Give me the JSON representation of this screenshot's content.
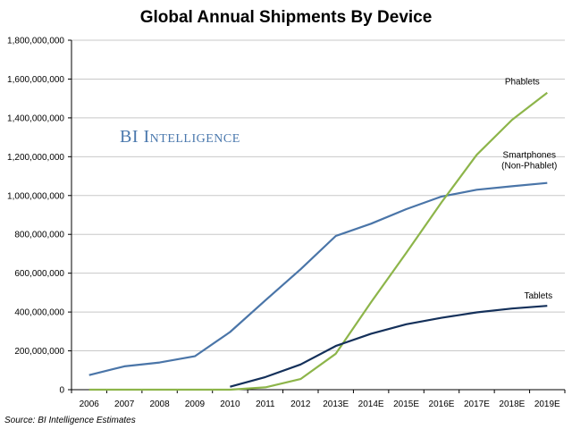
{
  "chart_data": {
    "type": "line",
    "title": "Global Annual Shipments By Device",
    "watermark": "BI Intelligence",
    "source": "Source: BI Intelligence Estimates",
    "xlabel": "",
    "ylabel": "",
    "categories": [
      "2006",
      "2007",
      "2008",
      "2009",
      "2010",
      "2011",
      "2012",
      "2013E",
      "2014E",
      "2015E",
      "2016E",
      "2017E",
      "2018E",
      "2019E"
    ],
    "ylim": [
      0,
      1800000000
    ],
    "yticks": [
      0,
      200000000,
      400000000,
      600000000,
      800000000,
      1000000000,
      1200000000,
      1400000000,
      1600000000,
      1800000000
    ],
    "ytick_labels": [
      "0",
      "200,000,000",
      "400,000,000",
      "600,000,000",
      "800,000,000",
      "1,000,000,000",
      "1,200,000,000",
      "1,400,000,000",
      "1,600,000,000",
      "1,800,000,000"
    ],
    "grid": "horizontal",
    "legend": "inline labels near line ends",
    "series": [
      {
        "name": "Smartphones (Non-Phablet)",
        "label_lines": [
          "Smartphones",
          "(Non-Phablet)"
        ],
        "color": "#4a75a8",
        "values": [
          75000000,
          120000000,
          140000000,
          172000000,
          297000000,
          460000000,
          620000000,
          792000000,
          855000000,
          930000000,
          995000000,
          1030000000,
          1048000000,
          1065000000
        ]
      },
      {
        "name": "Phablets",
        "label_lines": [
          "Phablets"
        ],
        "color": "#8db54a",
        "values": [
          0,
          0,
          0,
          0,
          0,
          12000000,
          55000000,
          185000000,
          450000000,
          705000000,
          965000000,
          1210000000,
          1390000000,
          1530000000
        ]
      },
      {
        "name": "Tablets",
        "label_lines": [
          "Tablets"
        ],
        "color": "#14305a",
        "values": [
          null,
          null,
          null,
          null,
          15000000,
          65000000,
          130000000,
          225000000,
          288000000,
          337000000,
          370000000,
          398000000,
          418000000,
          432000000
        ]
      }
    ]
  }
}
